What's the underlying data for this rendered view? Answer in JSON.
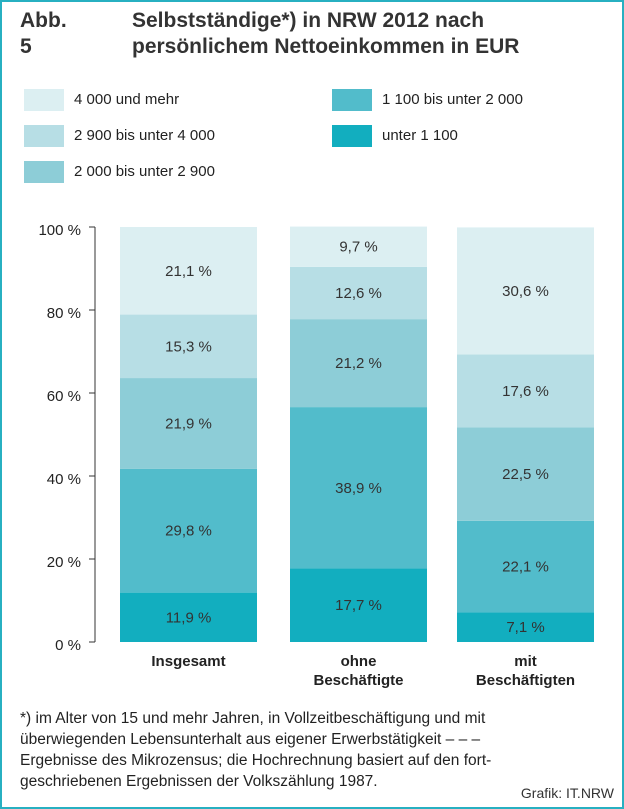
{
  "chart_data": {
    "type": "stacked_bar",
    "figure_label": "Abb. 5",
    "title": "Selbstständige*) in NRW 2012 nach persönlichem Nettoeinkommen in EUR",
    "categories": [
      "Insgesamt",
      "ohne Beschäftigte",
      "mit Beschäftigten"
    ],
    "series": [
      {
        "name": "unter 1 100",
        "color": "#12aebf",
        "values": [
          11.9,
          17.7,
          7.1
        ],
        "value_labels": [
          "11,9 %",
          "17,7 %",
          "7,1 %"
        ]
      },
      {
        "name": "1 100 bis unter 2 000",
        "color": "#52bccb",
        "values": [
          29.8,
          38.9,
          22.1
        ],
        "value_labels": [
          "29,8 %",
          "38,9 %",
          "22,1 %"
        ]
      },
      {
        "name": "2 000 bis unter 2 900",
        "color": "#8dcdd7",
        "values": [
          21.9,
          21.2,
          22.5
        ],
        "value_labels": [
          "21,9 %",
          "21,2 %",
          "22,5 %"
        ]
      },
      {
        "name": "2 900 bis unter 4 000",
        "color": "#b7dee5",
        "values": [
          15.3,
          12.6,
          17.6
        ],
        "value_labels": [
          "15,3 %",
          "12,6 %",
          "17,6 %"
        ]
      },
      {
        "name": "4 000 und mehr",
        "color": "#dceff2",
        "values": [
          21.1,
          9.7,
          30.6
        ],
        "value_labels": [
          "21,1 %",
          "9,7 %",
          "30,6 %"
        ]
      }
    ],
    "ylim": [
      0,
      100
    ],
    "yticks": [
      {
        "value": 0,
        "label": "0 %"
      },
      {
        "value": 20,
        "label": "20 %"
      },
      {
        "value": 40,
        "label": "40 %"
      },
      {
        "value": 60,
        "label": "60 %"
      },
      {
        "value": 80,
        "label": "80 %"
      },
      {
        "value": 100,
        "label": "100 %"
      }
    ],
    "footnote": [
      "*) im Alter von 15 und mehr Jahren, in Vollzeitbeschäftigung und mit",
      "überwiegenden Lebensunterhalt aus eigener Erwerbstätigkeit – – –",
      "Ergebnisse des Mikrozensus; die Hochrechnung basiert auf den fort-",
      "geschriebenen Ergebnissen der Volkszählung 1987."
    ],
    "source": "Grafik: IT.NRW"
  }
}
